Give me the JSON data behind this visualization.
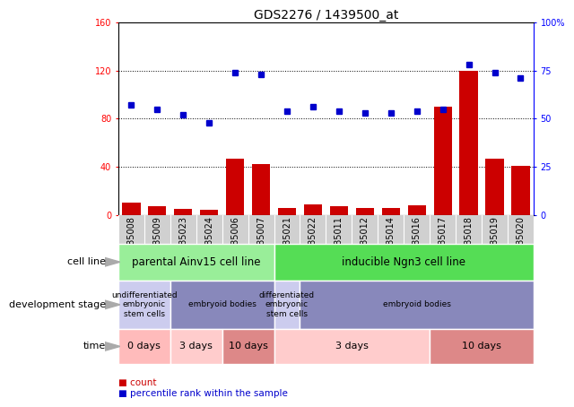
{
  "title": "GDS2276 / 1439500_at",
  "samples": [
    "GSM85008",
    "GSM85009",
    "GSM85023",
    "GSM85024",
    "GSM85006",
    "GSM85007",
    "GSM85021",
    "GSM85022",
    "GSM85011",
    "GSM85012",
    "GSM85014",
    "GSM85016",
    "GSM85017",
    "GSM85018",
    "GSM85019",
    "GSM85020"
  ],
  "counts": [
    10,
    7,
    5,
    4,
    47,
    42,
    6,
    9,
    7,
    6,
    6,
    8,
    90,
    120,
    47,
    41
  ],
  "percentiles": [
    57,
    55,
    52,
    48,
    74,
    73,
    54,
    56,
    54,
    53,
    53,
    54,
    55,
    78,
    74,
    71
  ],
  "left_ylim": [
    0,
    160
  ],
  "right_ylim": [
    0,
    100
  ],
  "left_yticks": [
    0,
    40,
    80,
    120,
    160
  ],
  "right_yticks": [
    0,
    25,
    50,
    75,
    100
  ],
  "right_yticklabels": [
    "0",
    "25",
    "50",
    "75",
    "100%"
  ],
  "bar_color": "#cc0000",
  "dot_color": "#0000cc",
  "plot_bg": "#ffffff",
  "xtick_bg": "#d0d0d0",
  "cell_line_groups": [
    {
      "label": "parental Ainv15 cell line",
      "start": 0,
      "end": 6,
      "color": "#99ee99"
    },
    {
      "label": "inducible Ngn3 cell line",
      "start": 6,
      "end": 16,
      "color": "#55dd55"
    }
  ],
  "dev_stage_groups": [
    {
      "label": "undifferentiated\nembryonic\nstem cells",
      "start": 0,
      "end": 2,
      "color": "#ccccee"
    },
    {
      "label": "embryoid bodies",
      "start": 2,
      "end": 6,
      "color": "#8888bb"
    },
    {
      "label": "differentiated\nembryonic\nstem cells",
      "start": 6,
      "end": 7,
      "color": "#ccccee"
    },
    {
      "label": "embryoid bodies",
      "start": 7,
      "end": 16,
      "color": "#8888bb"
    }
  ],
  "time_groups": [
    {
      "label": "0 days",
      "start": 0,
      "end": 2,
      "color": "#ffbbbb"
    },
    {
      "label": "3 days",
      "start": 2,
      "end": 4,
      "color": "#ffcccc"
    },
    {
      "label": "10 days",
      "start": 4,
      "end": 6,
      "color": "#dd8888"
    },
    {
      "label": "3 days",
      "start": 6,
      "end": 12,
      "color": "#ffcccc"
    },
    {
      "label": "10 days",
      "start": 12,
      "end": 16,
      "color": "#dd8888"
    }
  ],
  "row_labels": [
    "cell line",
    "development stage",
    "time"
  ],
  "title_fontsize": 10,
  "tick_fontsize": 7,
  "bar_fontsize": 7,
  "annotation_fontsize": 7.5,
  "row_label_fontsize": 8
}
